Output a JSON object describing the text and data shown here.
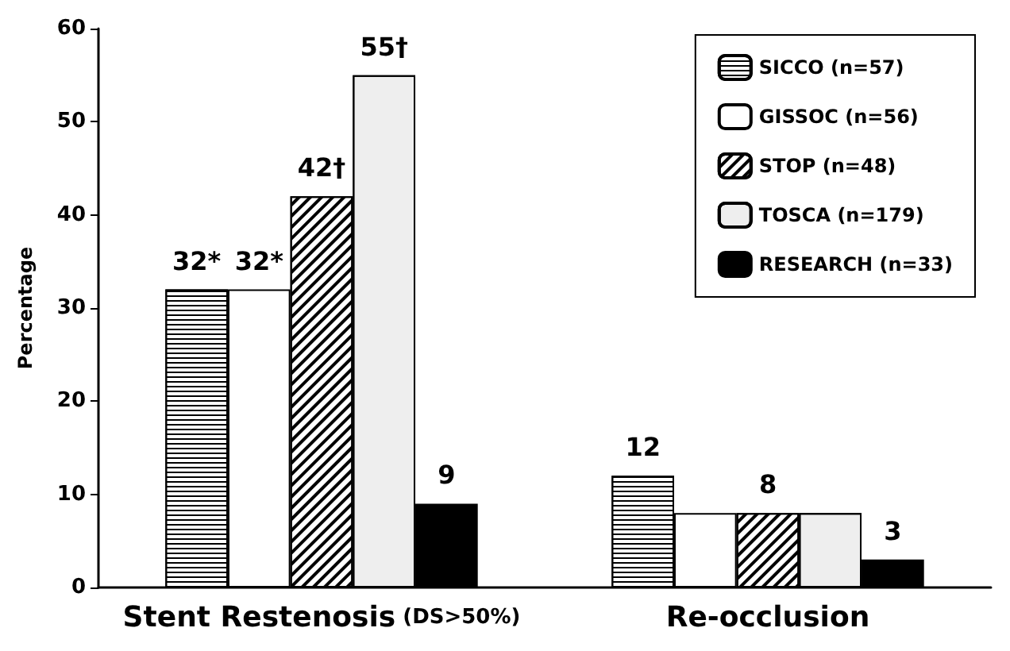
{
  "chart_data": {
    "type": "bar",
    "ylabel": "Percentage",
    "categories": [
      "Stent Restenosis (DS>50%)",
      "Re-occlusion"
    ],
    "series": [
      {
        "name": "SICCO (n=57)",
        "color": "#ffffff",
        "values": [
          32,
          12
        ],
        "value_labels": [
          "32*",
          "12"
        ]
      },
      {
        "name": "GISSOC (n=56)",
        "color": "#ffffff",
        "values": [
          32,
          8
        ],
        "value_labels": [
          "32*",
          null
        ]
      },
      {
        "name": "STOP (n=48)",
        "color": "#ffffff",
        "values": [
          42,
          8
        ],
        "value_labels": [
          "42†",
          "8"
        ]
      },
      {
        "name": "TOSCA (n=179)",
        "color": "#eeeeee",
        "values": [
          55,
          8
        ],
        "value_labels": [
          "55†",
          null
        ]
      },
      {
        "name": "RESEARCH (n=33)",
        "color": "#000000",
        "values": [
          9,
          3
        ],
        "value_labels": [
          "9",
          "3"
        ]
      }
    ],
    "ylim": [
      0,
      60
    ],
    "yticks": [
      0,
      10,
      20,
      30,
      40,
      50,
      60
    ],
    "grid": false,
    "legend": "top right"
  }
}
